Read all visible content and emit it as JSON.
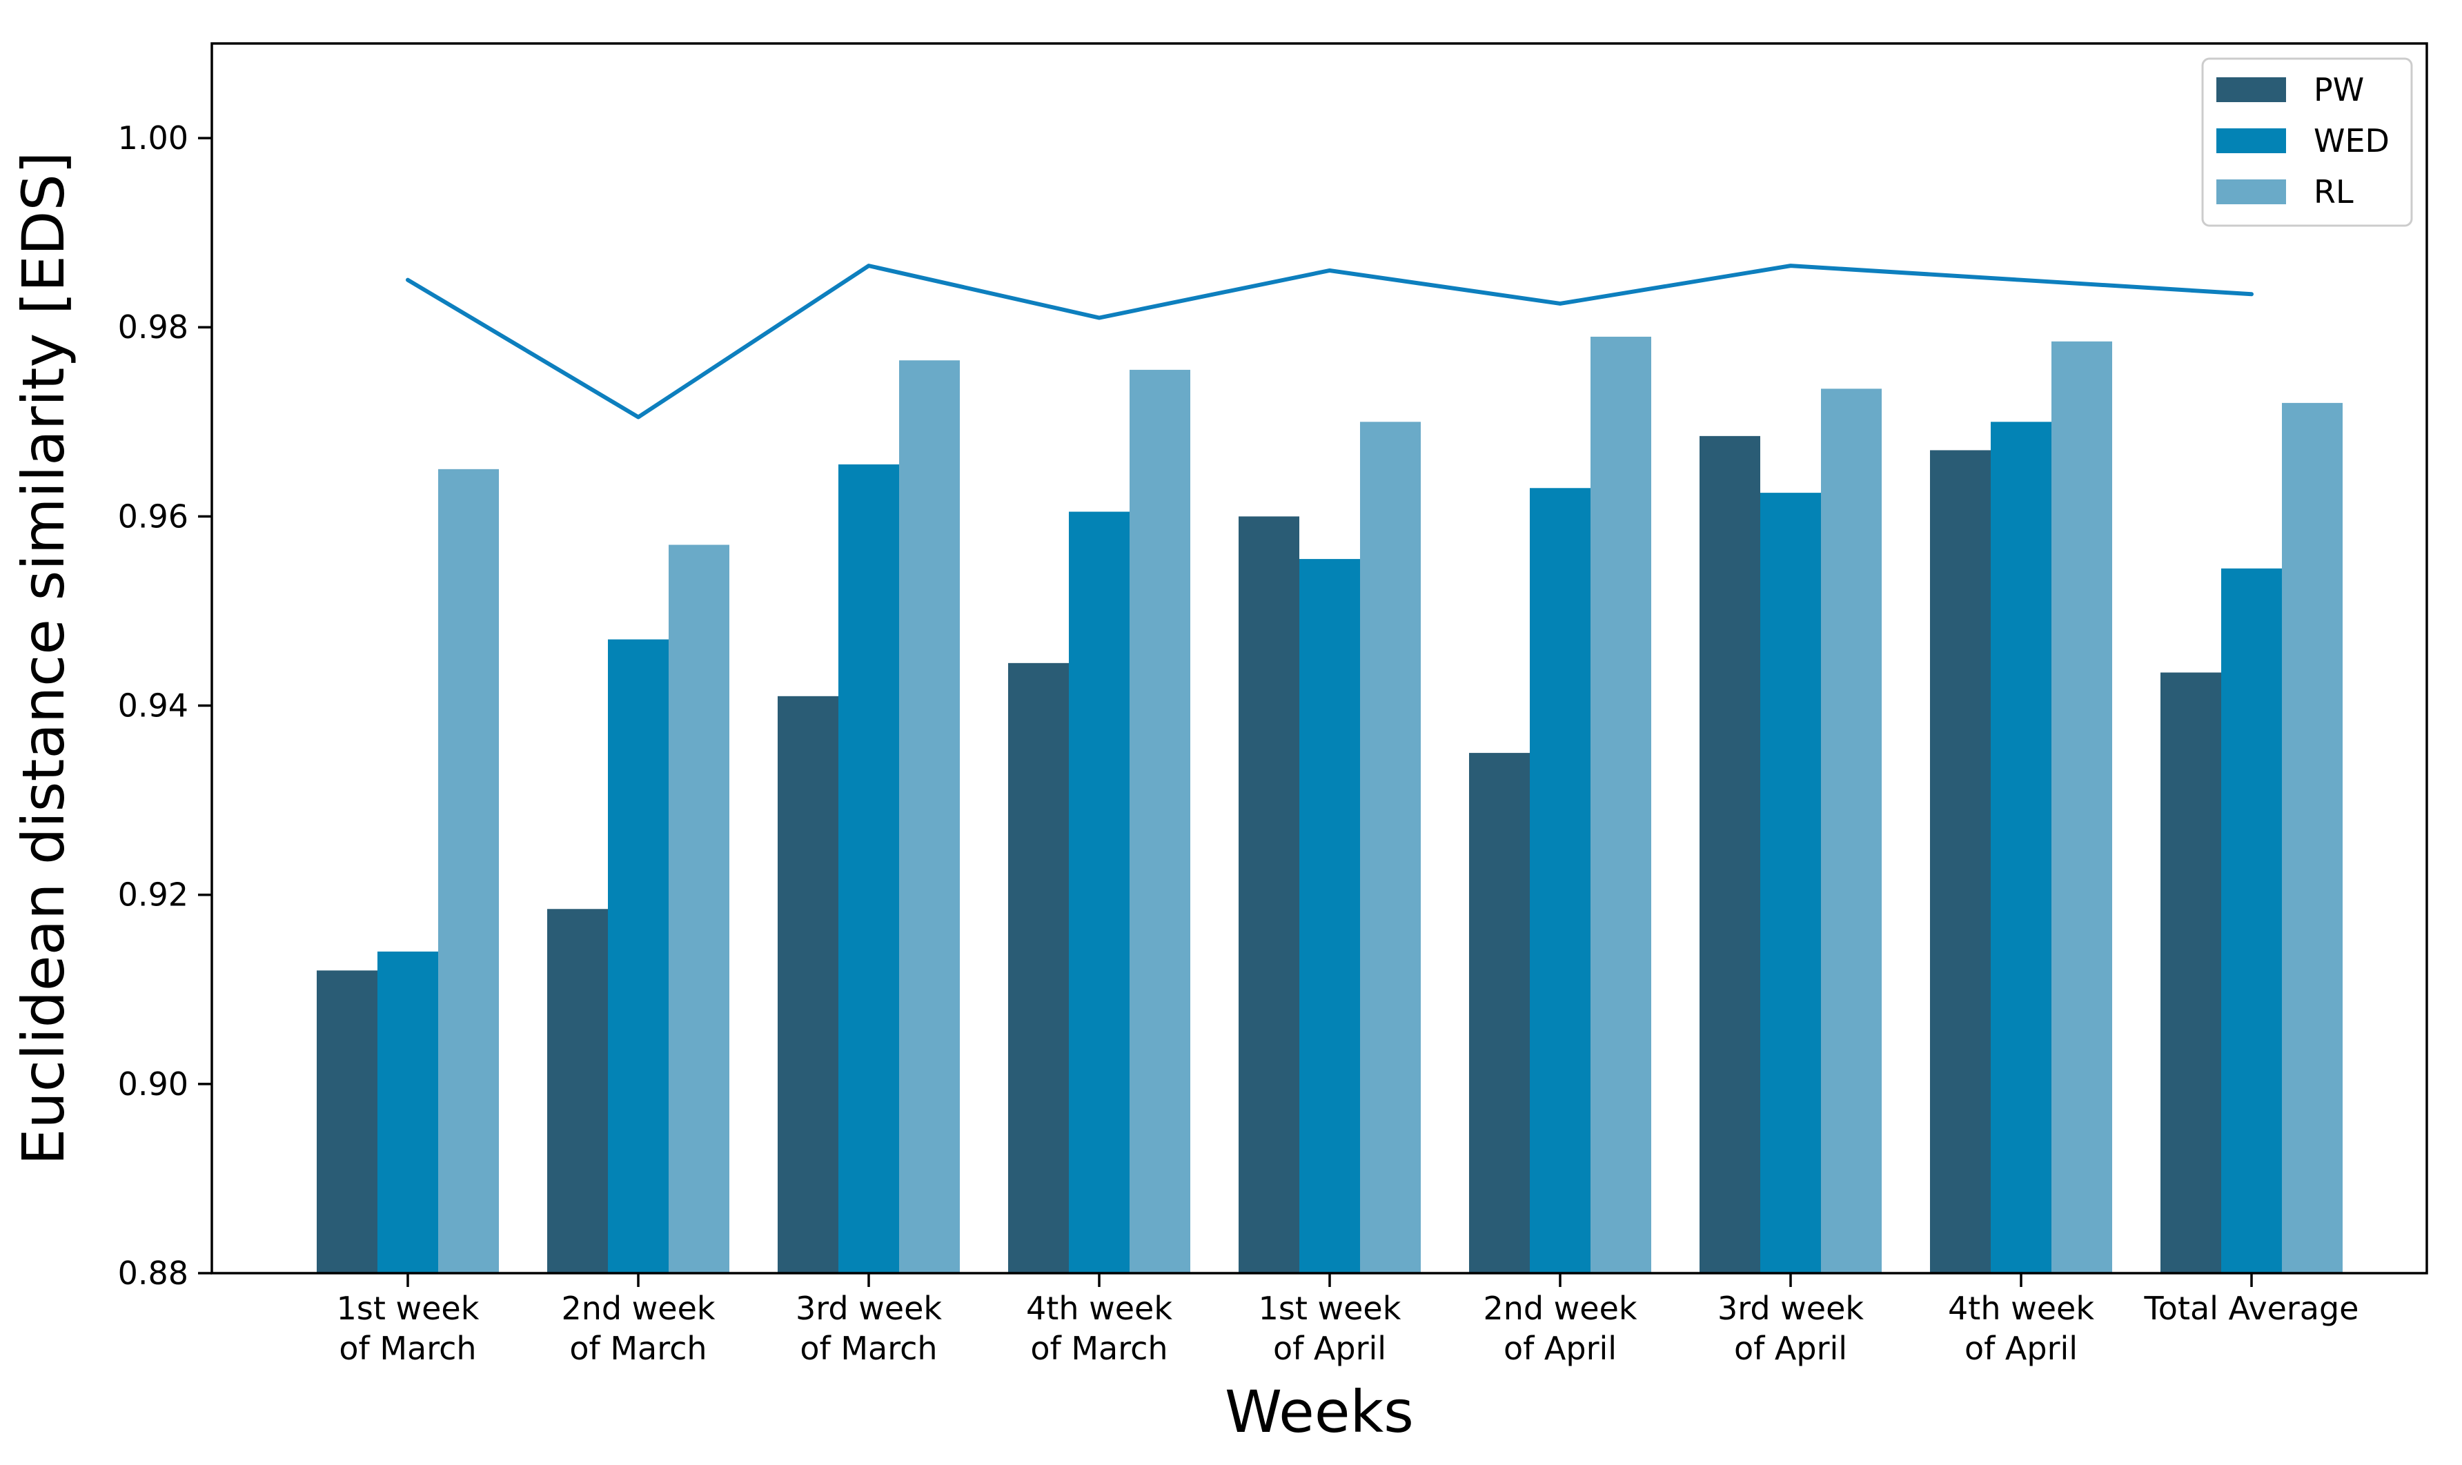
{
  "chart_data": {
    "type": "bar",
    "title": "",
    "xlabel": "Weeks",
    "ylabel": "Euclidean distance similarity [EDS]",
    "ylim": [
      0.88,
      1.01
    ],
    "yticks": [
      0.88,
      0.9,
      0.92,
      0.94,
      0.96,
      0.98,
      1.0
    ],
    "ytick_labels": [
      "0.88",
      "0.90",
      "0.92",
      "0.94",
      "0.96",
      "0.98",
      "1.00"
    ],
    "categories": [
      "1st week\nof March",
      "2nd week\nof March",
      "3rd week\nof March",
      "4th week\nof March",
      "1st week\nof April",
      "2nd week\nof April",
      "3rd week\nof April",
      "4th week\nof April",
      "Total Average"
    ],
    "series": [
      {
        "name": "PW",
        "color": "#2a5c75",
        "values": [
          0.912,
          0.9185,
          0.941,
          0.9445,
          0.96,
          0.935,
          0.9685,
          0.967,
          0.9435
        ]
      },
      {
        "name": "WED",
        "color": "#0383b5",
        "values": [
          0.914,
          0.947,
          0.9655,
          0.9605,
          0.9555,
          0.963,
          0.9625,
          0.97,
          0.9545
        ]
      },
      {
        "name": "RL",
        "color": "#6aaac8",
        "values": [
          0.965,
          0.957,
          0.9765,
          0.9755,
          0.97,
          0.979,
          0.9735,
          0.9785,
          0.972
        ]
      }
    ],
    "line": {
      "color": "#0d7fbe",
      "values": [
        0.985,
        0.9705,
        0.9865,
        0.981,
        0.986,
        0.9825,
        0.9865,
        0.985,
        0.9835
      ]
    },
    "legend": {
      "position": "upper right",
      "entries": [
        "PW",
        "WED",
        "RL"
      ]
    },
    "grid": false,
    "axis_color": "#000000",
    "legend_border_color": "#cccccc"
  }
}
